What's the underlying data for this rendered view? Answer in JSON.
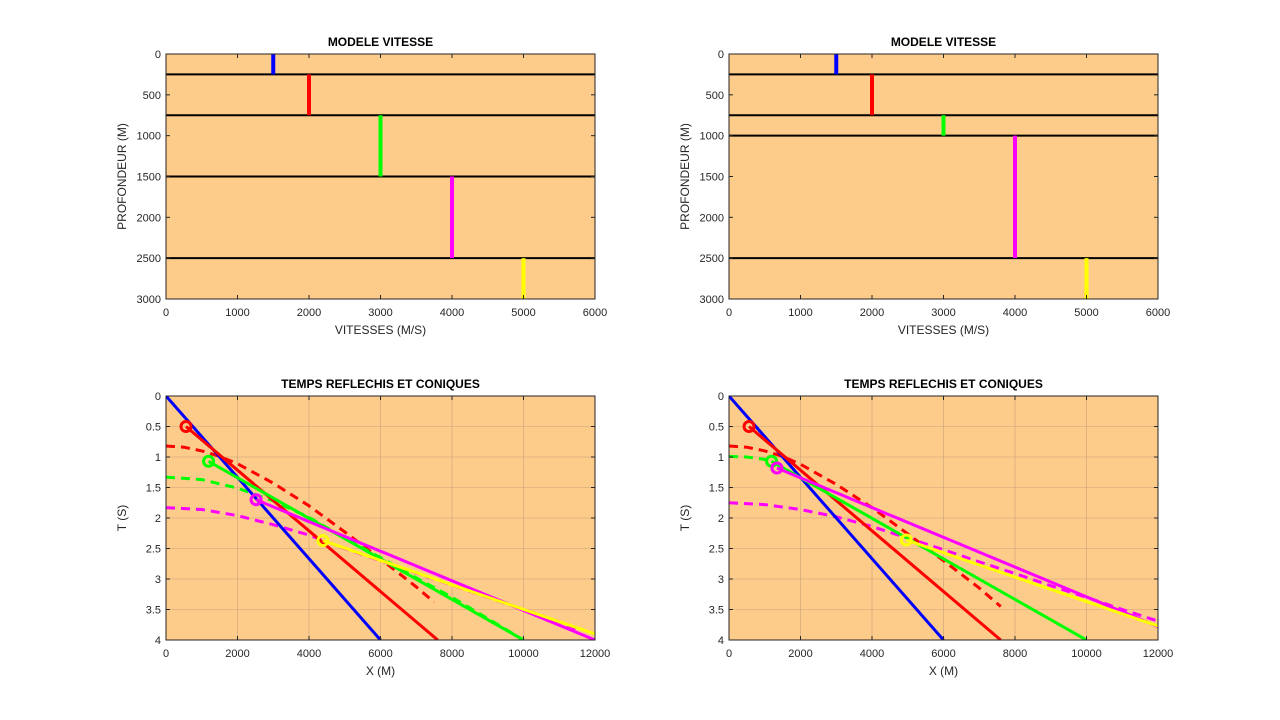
{
  "colors": {
    "background": "#ffffff",
    "axes_bg": "#fdcb8a",
    "grid": "#c9a27a",
    "blue": "#0000ff",
    "red": "#ff0000",
    "green": "#00ff00",
    "magenta": "#ff00ff",
    "yellow": "#ffff00",
    "black": "#000000"
  },
  "chart_data": [
    {
      "id": "vm1",
      "type": "line",
      "title": "MODELE VITESSE",
      "xlabel": "VITESSES (M/S)",
      "ylabel": "PROFONDEUR (M)",
      "xlim": [
        0,
        6000
      ],
      "ylim": [
        0,
        3000
      ],
      "y_reversed": true,
      "grid": false,
      "xticks": [
        0,
        1000,
        2000,
        3000,
        4000,
        5000,
        6000
      ],
      "yticks": [
        0,
        500,
        1000,
        1500,
        2000,
        2500,
        3000
      ],
      "interfaces": [
        250,
        750,
        1500,
        2500
      ],
      "layers": [
        {
          "velocity": 1500,
          "top": 0,
          "bottom": 250,
          "color": "blue"
        },
        {
          "velocity": 2000,
          "top": 250,
          "bottom": 750,
          "color": "red"
        },
        {
          "velocity": 3000,
          "top": 750,
          "bottom": 1500,
          "color": "green"
        },
        {
          "velocity": 4000,
          "top": 1500,
          "bottom": 2500,
          "color": "magenta"
        },
        {
          "velocity": 5000,
          "top": 2500,
          "bottom": 3000,
          "color": "yellow"
        }
      ]
    },
    {
      "id": "vm2",
      "type": "line",
      "title": "MODELE VITESSE",
      "xlabel": "VITESSES (M/S)",
      "ylabel": "PROFONDEUR (M)",
      "xlim": [
        0,
        6000
      ],
      "ylim": [
        0,
        3000
      ],
      "y_reversed": true,
      "grid": false,
      "xticks": [
        0,
        1000,
        2000,
        3000,
        4000,
        5000,
        6000
      ],
      "yticks": [
        0,
        500,
        1000,
        1500,
        2000,
        2500,
        3000
      ],
      "interfaces": [
        250,
        750,
        1000,
        2500
      ],
      "layers": [
        {
          "velocity": 1500,
          "top": 0,
          "bottom": 250,
          "color": "blue"
        },
        {
          "velocity": 2000,
          "top": 250,
          "bottom": 750,
          "color": "red"
        },
        {
          "velocity": 3000,
          "top": 750,
          "bottom": 1000,
          "color": "green"
        },
        {
          "velocity": 4000,
          "top": 1000,
          "bottom": 2500,
          "color": "magenta"
        },
        {
          "velocity": 5000,
          "top": 2500,
          "bottom": 3000,
          "color": "yellow"
        }
      ]
    },
    {
      "id": "tt1",
      "type": "line",
      "title": "TEMPS REFLECHIS ET CONIQUES",
      "xlabel": "X (M)",
      "ylabel": "T (S)",
      "xlim": [
        0,
        12000
      ],
      "ylim": [
        0,
        4
      ],
      "y_reversed": true,
      "grid": true,
      "xticks": [
        0,
        2000,
        4000,
        6000,
        8000,
        10000,
        12000
      ],
      "yticks": [
        0,
        0.5,
        1,
        1.5,
        2,
        2.5,
        3,
        3.5,
        4
      ],
      "solid_series": [
        {
          "color": "blue",
          "x": [
            0,
            6000
          ],
          "y": [
            0,
            4.0
          ]
        },
        {
          "color": "red",
          "x": [
            560,
            7600
          ],
          "y": [
            0.5,
            4.0
          ]
        },
        {
          "color": "green",
          "x": [
            1190,
            10000
          ],
          "y": [
            1.07,
            4.0
          ]
        },
        {
          "color": "magenta",
          "x": [
            2520,
            12000
          ],
          "y": [
            1.7,
            4.0
          ]
        },
        {
          "color": "yellow",
          "x": [
            4390,
            12000
          ],
          "y": [
            2.37,
            3.9
          ]
        }
      ],
      "dashed_series": [
        {
          "color": "red",
          "x": [
            0,
            500,
            1000,
            1500,
            2000,
            3000,
            4000,
            5000,
            6000,
            7000,
            7500
          ],
          "y": [
            0.82,
            0.84,
            0.9,
            0.99,
            1.11,
            1.43,
            1.8,
            2.23,
            2.67,
            3.13,
            3.38
          ]
        },
        {
          "color": "green",
          "x": [
            0,
            1000,
            2000,
            3000,
            4000,
            5000,
            6000,
            7000,
            8000,
            9000,
            10000
          ],
          "y": [
            1.33,
            1.37,
            1.51,
            1.72,
            1.99,
            2.33,
            2.65,
            2.98,
            3.3,
            3.65,
            4.0
          ]
        },
        {
          "color": "magenta",
          "x": [
            0,
            1000,
            2000,
            3000,
            4000,
            5000,
            6000,
            7000,
            8000,
            9000,
            10000,
            11000,
            11600
          ],
          "y": [
            1.83,
            1.86,
            1.96,
            2.11,
            2.28,
            2.5,
            2.7,
            2.9,
            3.1,
            3.3,
            3.5,
            3.7,
            3.85
          ]
        }
      ],
      "critical_points": [
        {
          "color": "red",
          "x": 560,
          "y": 0.5
        },
        {
          "color": "green",
          "x": 1190,
          "y": 1.07
        },
        {
          "color": "magenta",
          "x": 2520,
          "y": 1.7
        },
        {
          "color": "yellow",
          "x": 4390,
          "y": 2.37
        }
      ]
    },
    {
      "id": "tt2",
      "type": "line",
      "title": "TEMPS REFLECHIS ET CONIQUES",
      "xlabel": "X (M)",
      "ylabel": "T (S)",
      "xlim": [
        0,
        12000
      ],
      "ylim": [
        0,
        4
      ],
      "y_reversed": true,
      "grid": true,
      "xticks": [
        0,
        2000,
        4000,
        6000,
        8000,
        10000,
        12000
      ],
      "yticks": [
        0,
        0.5,
        1,
        1.5,
        2,
        2.5,
        3,
        3.5,
        4
      ],
      "solid_series": [
        {
          "color": "blue",
          "x": [
            0,
            6000
          ],
          "y": [
            0,
            4.0
          ]
        },
        {
          "color": "red",
          "x": [
            560,
            7600
          ],
          "y": [
            0.5,
            4.0
          ]
        },
        {
          "color": "green",
          "x": [
            1190,
            10000
          ],
          "y": [
            1.07,
            4.0
          ]
        },
        {
          "color": "magenta",
          "x": [
            1340,
            12000
          ],
          "y": [
            1.18,
            3.78
          ]
        },
        {
          "color": "yellow",
          "x": [
            4960,
            12000
          ],
          "y": [
            2.36,
            3.77
          ]
        }
      ],
      "dashed_series": [
        {
          "color": "red",
          "x": [
            0,
            500,
            1000,
            1500,
            2000,
            3000,
            4000,
            5000,
            6000,
            7000,
            7600
          ],
          "y": [
            0.82,
            0.84,
            0.9,
            0.99,
            1.12,
            1.45,
            1.83,
            2.26,
            2.7,
            3.15,
            3.45
          ]
        },
        {
          "color": "green",
          "x": [
            0,
            500,
            1000,
            1190
          ],
          "y": [
            0.99,
            1.0,
            1.04,
            1.07
          ]
        },
        {
          "color": "magenta",
          "x": [
            0,
            1000,
            2000,
            3000,
            4000,
            5000,
            6000,
            7000,
            8000,
            9000,
            10000,
            11000,
            12000
          ],
          "y": [
            1.75,
            1.78,
            1.86,
            1.98,
            2.14,
            2.33,
            2.52,
            2.72,
            2.91,
            3.11,
            3.3,
            3.5,
            3.69
          ]
        }
      ],
      "critical_points": [
        {
          "color": "red",
          "x": 560,
          "y": 0.5
        },
        {
          "color": "green",
          "x": 1190,
          "y": 1.07
        },
        {
          "color": "magenta",
          "x": 1340,
          "y": 1.18
        },
        {
          "color": "yellow",
          "x": 4960,
          "y": 2.36
        }
      ]
    }
  ]
}
